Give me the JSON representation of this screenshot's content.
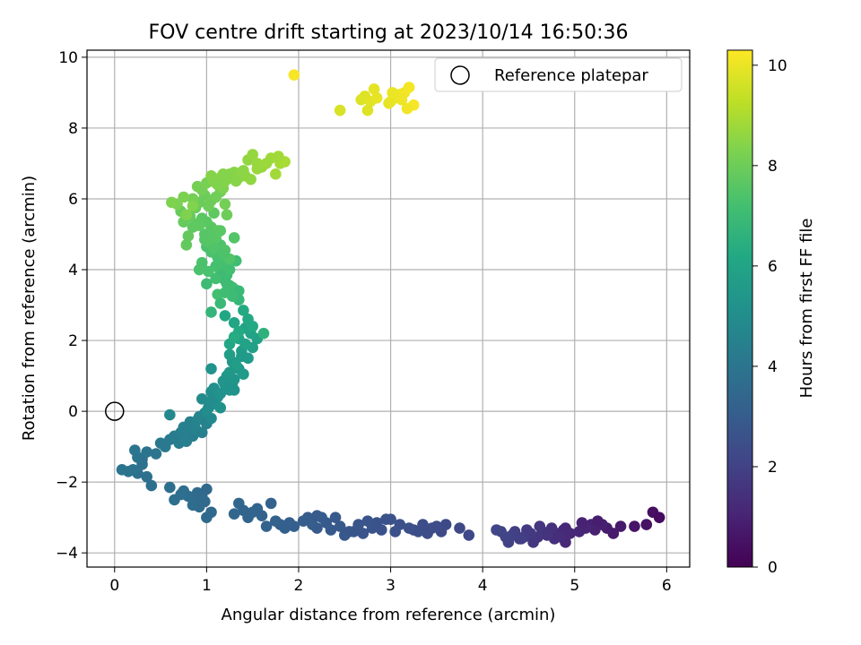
{
  "chart_data": {
    "type": "scatter",
    "title": "FOV centre drift starting at 2023/10/14 16:50:36",
    "xlabel": "Angular distance from reference (arcmin)",
    "ylabel": "Rotation from reference (arcmin)",
    "xlim": [
      -0.3,
      6.25
    ],
    "ylim": [
      -4.4,
      10.2
    ],
    "xticks": [
      0,
      1,
      2,
      3,
      4,
      5,
      6
    ],
    "xtick_labels": [
      "0",
      "1",
      "2",
      "3",
      "4",
      "5",
      "6"
    ],
    "yticks": [
      -4,
      -2,
      0,
      2,
      4,
      6,
      8,
      10
    ],
    "ytick_labels": [
      "−4",
      "−2",
      "0",
      "2",
      "4",
      "6",
      "8",
      "10"
    ],
    "grid": true,
    "legend": {
      "position": "top-right",
      "label": "Reference platepar"
    },
    "reference_point": {
      "x": 0,
      "y": 0
    },
    "colorbar": {
      "label": "Hours from first FF file",
      "colormap": "viridis",
      "range": [
        0,
        10.3
      ],
      "ticks": [
        0,
        2,
        4,
        6,
        8,
        10
      ],
      "tick_labels": [
        "0",
        "2",
        "4",
        "6",
        "8",
        "10"
      ]
    },
    "series": [
      {
        "x": [
          5.85,
          5.92,
          5.78,
          5.65,
          5.5,
          5.42,
          5.35,
          5.3,
          5.22,
          5.18,
          5.12,
          5.05,
          5.08,
          4.95,
          4.9,
          4.88,
          4.85,
          4.8,
          4.78,
          4.75,
          4.7,
          4.65,
          4.6,
          4.55,
          4.52,
          4.48,
          4.45,
          4.4,
          4.35,
          4.32,
          4.28,
          4.25,
          4.2,
          4.15,
          4.9,
          4.62,
          4.42,
          5.25
        ],
        "y": [
          -2.85,
          -3.0,
          -3.2,
          -3.25,
          -3.25,
          -3.45,
          -3.3,
          -3.2,
          -3.35,
          -3.2,
          -3.3,
          -3.4,
          -3.15,
          -3.45,
          -3.7,
          -3.35,
          -3.55,
          -3.45,
          -3.6,
          -3.3,
          -3.5,
          -3.4,
          -3.55,
          -3.7,
          -3.45,
          -3.35,
          -3.55,
          -3.6,
          -3.4,
          -3.5,
          -3.7,
          -3.55,
          -3.4,
          -3.35,
          -3.3,
          -3.25,
          -3.6,
          -3.1
        ],
        "c": [
          0.4,
          0.3,
          0.5,
          0.6,
          0.7,
          0.75,
          0.8,
          0.9,
          0.95,
          1.0,
          1.05,
          1.1,
          1.0,
          1.15,
          1.2,
          1.25,
          1.3,
          1.35,
          1.4,
          1.45,
          1.5,
          1.55,
          1.6,
          1.65,
          1.7,
          1.75,
          1.8,
          1.85,
          1.9,
          1.95,
          2.0,
          2.05,
          2.1,
          2.15,
          1.2,
          1.6,
          1.9,
          0.85
        ]
      },
      {
        "x": [
          3.85,
          3.75,
          3.6,
          3.55,
          3.5,
          3.45,
          3.4,
          3.35,
          3.3,
          3.25,
          3.2,
          3.1,
          3.05,
          2.95,
          2.9,
          2.85,
          2.8,
          2.75,
          2.7,
          2.65,
          2.55,
          2.5,
          2.45,
          2.4,
          2.35,
          2.3,
          2.25,
          2.2,
          2.15,
          2.1,
          2.05,
          1.95,
          1.85,
          1.8,
          1.75,
          1.7,
          1.65,
          1.6,
          1.55,
          1.5,
          1.45,
          1.35,
          1.3,
          3.0,
          2.6,
          2.2,
          1.9,
          1.4
        ],
        "y": [
          -3.5,
          -3.3,
          -3.2,
          -3.4,
          -3.25,
          -3.3,
          -3.45,
          -3.2,
          -3.4,
          -3.35,
          -3.3,
          -3.2,
          -3.4,
          -3.05,
          -3.35,
          -3.15,
          -3.3,
          -3.1,
          -3.45,
          -3.2,
          -3.4,
          -3.5,
          -3.25,
          -3.0,
          -3.35,
          -3.15,
          -3.0,
          -3.3,
          -3.2,
          -3.0,
          -3.1,
          -3.25,
          -3.3,
          -3.2,
          -3.1,
          -2.6,
          -3.25,
          -2.95,
          -2.75,
          -2.85,
          -3.0,
          -2.6,
          -2.9,
          -3.05,
          -3.4,
          -2.95,
          -3.15,
          -2.8
        ],
        "c": [
          2.2,
          2.25,
          2.3,
          2.3,
          2.35,
          2.35,
          2.4,
          2.4,
          2.45,
          2.45,
          2.5,
          2.55,
          2.55,
          2.6,
          2.6,
          2.65,
          2.65,
          2.7,
          2.7,
          2.75,
          2.8,
          2.8,
          2.85,
          2.85,
          2.9,
          2.9,
          2.95,
          2.95,
          3.0,
          3.0,
          3.05,
          3.1,
          3.15,
          3.15,
          3.2,
          3.2,
          3.25,
          3.25,
          3.3,
          3.3,
          3.35,
          3.4,
          3.4,
          2.6,
          2.75,
          2.95,
          3.1,
          3.35
        ]
      },
      {
        "x": [
          1.05,
          1.0,
          0.98,
          0.95,
          0.92,
          0.9,
          0.88,
          0.85,
          0.8,
          0.75,
          0.72,
          0.65,
          0.6,
          0.4,
          0.35,
          0.3,
          0.25,
          0.2,
          0.15,
          0.08,
          0.3,
          0.35,
          0.25,
          0.22,
          0.45,
          0.5,
          0.55,
          0.6,
          0.65,
          0.7,
          0.72,
          0.75,
          0.8,
          0.82,
          0.85,
          0.88,
          0.9,
          0.92,
          0.95,
          0.98,
          1.0,
          1.02,
          1.05,
          0.6,
          0.78,
          1.0
        ],
        "y": [
          -2.85,
          -3.0,
          -2.55,
          -2.4,
          -2.7,
          -2.3,
          -2.5,
          -2.65,
          -2.4,
          -2.25,
          -2.35,
          -2.5,
          -2.15,
          -2.1,
          -1.85,
          -1.5,
          -1.75,
          -1.65,
          -1.7,
          -1.65,
          -1.35,
          -1.15,
          -1.3,
          -1.1,
          -1.2,
          -0.9,
          -1.0,
          -0.8,
          -0.7,
          -0.9,
          -0.6,
          -0.45,
          -0.55,
          -0.3,
          -0.7,
          -0.5,
          -0.25,
          -0.15,
          -0.6,
          -0.05,
          -0.35,
          0.1,
          -0.2,
          -0.1,
          -0.85,
          -2.2
        ],
        "c": [
          3.45,
          3.5,
          3.5,
          3.55,
          3.55,
          3.6,
          3.6,
          3.65,
          3.65,
          3.7,
          3.7,
          3.75,
          3.75,
          3.8,
          3.8,
          3.85,
          3.85,
          3.9,
          3.9,
          3.95,
          3.85,
          3.95,
          3.9,
          4.0,
          4.05,
          4.1,
          4.15,
          4.2,
          4.25,
          4.3,
          4.35,
          4.4,
          4.45,
          4.5,
          4.35,
          4.55,
          4.6,
          4.65,
          4.45,
          4.7,
          4.55,
          4.75,
          4.8,
          4.8,
          4.4,
          3.5
        ]
      },
      {
        "x": [
          0.95,
          1.0,
          1.05,
          1.1,
          1.08,
          1.12,
          1.15,
          1.05,
          1.2,
          1.25,
          1.3,
          1.22,
          1.35,
          1.28,
          1.4,
          1.45,
          1.38,
          1.32,
          1.25,
          1.5,
          1.55,
          1.48,
          1.42,
          1.35,
          1.3,
          1.25,
          1.2,
          1.45,
          1.5,
          1.4,
          1.35,
          1.3,
          1.05,
          1.15,
          1.28,
          1.38,
          1.42,
          1.25,
          1.18,
          1.3
        ],
        "y": [
          0.35,
          0.0,
          0.55,
          0.2,
          0.65,
          0.4,
          0.1,
          1.2,
          0.75,
          0.6,
          0.9,
          1.0,
          1.2,
          1.4,
          1.05,
          1.5,
          1.7,
          1.3,
          1.6,
          1.8,
          2.05,
          2.2,
          2.35,
          2.05,
          2.5,
          1.9,
          2.7,
          2.6,
          2.4,
          2.85,
          2.25,
          2.1,
          0.3,
          0.5,
          0.8,
          1.55,
          1.9,
          1.1,
          0.85,
          0.6
        ],
        "c": [
          4.9,
          4.95,
          5.0,
          5.05,
          5.1,
          5.15,
          5.15,
          5.2,
          5.25,
          5.3,
          5.35,
          5.4,
          5.45,
          5.5,
          5.55,
          5.6,
          5.65,
          5.7,
          5.75,
          5.8,
          5.85,
          5.9,
          5.95,
          6.0,
          6.05,
          6.1,
          6.15,
          6.2,
          6.2,
          6.25,
          6.25,
          6.3,
          5.0,
          5.2,
          5.35,
          5.6,
          5.9,
          5.45,
          5.3,
          5.25
        ]
      },
      {
        "x": [
          1.62,
          1.35,
          1.3,
          1.25,
          1.2,
          1.0,
          1.15,
          1.22,
          1.28,
          1.32,
          1.25,
          1.18,
          1.12,
          1.1,
          1.05,
          1.0,
          0.95,
          1.08,
          1.15,
          1.2,
          1.25,
          1.3,
          1.22,
          1.12,
          1.02,
          0.92,
          1.05,
          1.15,
          1.35,
          1.28,
          1.18,
          1.08,
          0.98,
          1.1,
          1.2
        ],
        "y": [
          2.2,
          3.15,
          3.45,
          3.55,
          3.7,
          3.6,
          3.95,
          3.85,
          3.5,
          4.25,
          4.0,
          4.15,
          4.35,
          4.1,
          4.5,
          4.65,
          4.2,
          4.8,
          4.7,
          4.55,
          4.3,
          4.9,
          3.6,
          3.3,
          3.95,
          4.0,
          2.8,
          3.05,
          3.4,
          3.25,
          4.45,
          4.6,
          4.85,
          3.75,
          3.35
        ],
        "c": [
          6.6,
          6.8,
          6.85,
          6.9,
          6.95,
          7.0,
          7.0,
          7.05,
          7.1,
          7.1,
          7.15,
          7.2,
          7.25,
          7.25,
          7.3,
          7.35,
          7.35,
          7.4,
          7.4,
          7.45,
          7.45,
          7.5,
          7.05,
          7.2,
          7.3,
          7.35,
          6.75,
          6.95,
          6.9,
          7.0,
          7.4,
          7.45,
          7.5,
          7.15,
          7.1
        ]
      },
      {
        "x": [
          0.98,
          1.05,
          1.1,
          1.0,
          0.95,
          1.08,
          1.12,
          0.9,
          0.85,
          0.8,
          0.78,
          0.82,
          0.75,
          0.72,
          0.88,
          0.92,
          0.98,
          1.02,
          1.05,
          1.1,
          1.15,
          1.2,
          0.95,
          0.85,
          0.9,
          1.0,
          1.08,
          0.75,
          0.68,
          0.62,
          0.78,
          0.85,
          0.92,
          1.0,
          1.08,
          1.15,
          1.22,
          1.18
        ],
        "y": [
          5.0,
          5.2,
          4.9,
          5.35,
          5.45,
          5.6,
          5.1,
          5.3,
          5.2,
          4.95,
          4.7,
          5.5,
          5.35,
          5.65,
          5.75,
          5.9,
          6.1,
          5.8,
          5.95,
          6.05,
          6.2,
          5.85,
          6.25,
          6.0,
          6.35,
          6.45,
          6.55,
          6.05,
          5.85,
          5.9,
          5.55,
          5.8,
          5.25,
          4.8,
          4.95,
          5.1,
          5.55,
          6.3
        ],
        "c": [
          7.55,
          7.6,
          7.6,
          7.65,
          7.65,
          7.7,
          7.7,
          7.75,
          7.75,
          7.8,
          7.8,
          7.85,
          7.85,
          7.9,
          7.9,
          7.95,
          7.95,
          8.0,
          8.0,
          8.05,
          8.05,
          8.1,
          8.1,
          8.15,
          8.15,
          8.2,
          8.2,
          8.25,
          8.25,
          8.3,
          8.3,
          8.35,
          7.7,
          7.55,
          7.6,
          7.65,
          8.0,
          8.3
        ]
      },
      {
        "x": [
          1.1,
          1.15,
          1.2,
          1.25,
          1.3,
          1.35,
          1.4,
          1.45,
          1.5,
          1.55,
          1.6,
          1.7,
          1.75,
          1.8,
          1.85,
          1.78,
          1.65,
          1.55,
          1.48,
          1.42,
          1.38,
          1.32,
          1.28,
          1.22,
          1.18,
          1.12,
          1.08,
          1.05
        ],
        "y": [
          6.45,
          6.6,
          6.5,
          6.7,
          6.75,
          6.6,
          6.8,
          7.1,
          7.25,
          7.0,
          6.9,
          7.15,
          6.7,
          7.0,
          7.05,
          7.2,
          7.0,
          6.85,
          6.55,
          6.65,
          6.75,
          6.5,
          6.6,
          6.55,
          6.7,
          6.4,
          6.5,
          6.65
        ],
        "c": [
          8.35,
          8.4,
          8.4,
          8.45,
          8.45,
          8.5,
          8.55,
          8.6,
          8.65,
          8.7,
          8.75,
          8.8,
          8.85,
          8.9,
          8.95,
          8.85,
          8.75,
          8.7,
          8.6,
          8.55,
          8.5,
          8.45,
          8.45,
          8.4,
          8.4,
          8.35,
          8.35,
          8.4
        ]
      },
      {
        "x": [
          1.95,
          2.45,
          2.68,
          2.72,
          2.78,
          2.82,
          2.75,
          2.85,
          3.0,
          3.05,
          3.1,
          3.15,
          3.2,
          3.25,
          3.18,
          3.12,
          3.02,
          2.98
        ],
        "y": [
          9.5,
          8.5,
          8.8,
          8.9,
          8.75,
          9.1,
          8.5,
          8.85,
          8.75,
          8.85,
          8.95,
          9.0,
          9.15,
          8.65,
          8.55,
          8.8,
          9.0,
          8.7
        ],
        "c": [
          10.2,
          9.7,
          9.75,
          9.8,
          9.85,
          9.9,
          9.8,
          9.95,
          10.0,
          10.0,
          10.05,
          10.1,
          10.15,
          10.2,
          10.1,
          10.05,
          10.0,
          9.95
        ]
      }
    ]
  }
}
